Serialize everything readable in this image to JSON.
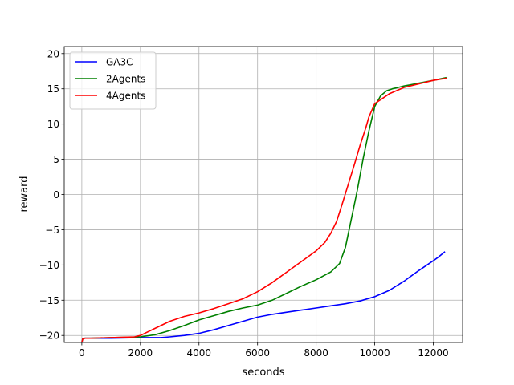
{
  "chart_data": {
    "type": "line",
    "title": "",
    "xlabel": "seconds",
    "ylabel": "reward",
    "xlim": [
      -600,
      13000
    ],
    "ylim": [
      -21,
      21
    ],
    "xticks": [
      0,
      2000,
      4000,
      6000,
      8000,
      10000,
      12000
    ],
    "xtick_labels": [
      "0",
      "2000",
      "4000",
      "6000",
      "8000",
      "10000",
      "12000"
    ],
    "yticks": [
      -20,
      -15,
      -10,
      -5,
      0,
      5,
      10,
      15,
      20
    ],
    "ytick_labels": [
      "−20",
      "−15",
      "−10",
      "−5",
      "0",
      "5",
      "10",
      "15",
      "20"
    ],
    "grid": true,
    "legend_position": "top-left",
    "series": [
      {
        "name": "GA3C",
        "color": "#0000ff",
        "x": [
          0,
          30,
          100,
          300,
          1000,
          2000,
          2700,
          3000,
          3500,
          4000,
          4500,
          5000,
          5500,
          6000,
          6500,
          7000,
          7500,
          8000,
          8500,
          9000,
          9500,
          10000,
          10500,
          11000,
          11500,
          12000,
          12200,
          12400
        ],
        "y": [
          -21,
          -20.5,
          -20.4,
          -20.4,
          -20.4,
          -20.3,
          -20.3,
          -20.2,
          -20.0,
          -19.7,
          -19.2,
          -18.6,
          -18.0,
          -17.4,
          -17.0,
          -16.7,
          -16.4,
          -16.1,
          -15.8,
          -15.5,
          -15.1,
          -14.5,
          -13.6,
          -12.3,
          -10.8,
          -9.4,
          -8.8,
          -8.1
        ]
      },
      {
        "name": "2Agents",
        "color": "#008000",
        "x": [
          0,
          30,
          100,
          300,
          1000,
          2000,
          2500,
          3000,
          3500,
          4000,
          4500,
          5000,
          5500,
          6000,
          6500,
          7000,
          7500,
          8000,
          8500,
          8800,
          9000,
          9200,
          9400,
          9600,
          9800,
          10000,
          10200,
          10400,
          10600,
          10800,
          11000,
          11500,
          12000,
          12450
        ],
        "y": [
          -21,
          -20.5,
          -20.4,
          -20.4,
          -20.3,
          -20.2,
          -19.9,
          -19.3,
          -18.6,
          -17.8,
          -17.2,
          -16.6,
          -16.1,
          -15.7,
          -15.0,
          -14.0,
          -13.0,
          -12.1,
          -11.0,
          -9.8,
          -7.5,
          -3.5,
          0.5,
          5.0,
          9.0,
          12.5,
          14.0,
          14.7,
          15.0,
          15.2,
          15.4,
          15.8,
          16.2,
          16.6
        ]
      },
      {
        "name": "4Agents",
        "color": "#ff0000",
        "x": [
          0,
          30,
          100,
          300,
          1000,
          1800,
          2000,
          2500,
          3000,
          3500,
          4000,
          4500,
          5000,
          5500,
          6000,
          6500,
          7000,
          7500,
          8000,
          8300,
          8500,
          8700,
          8900,
          9100,
          9300,
          9500,
          9700,
          9800,
          10000,
          10500,
          11000,
          11500,
          12000,
          12450
        ],
        "y": [
          -21,
          -20.5,
          -20.4,
          -20.4,
          -20.3,
          -20.2,
          -20.0,
          -19.0,
          -18.0,
          -17.3,
          -16.8,
          -16.2,
          -15.5,
          -14.8,
          -13.8,
          -12.5,
          -11.0,
          -9.5,
          -8.0,
          -6.8,
          -5.5,
          -3.8,
          -1.2,
          1.5,
          4.2,
          7.0,
          9.5,
          11.0,
          12.9,
          14.3,
          15.2,
          15.7,
          16.2,
          16.5
        ]
      }
    ]
  }
}
